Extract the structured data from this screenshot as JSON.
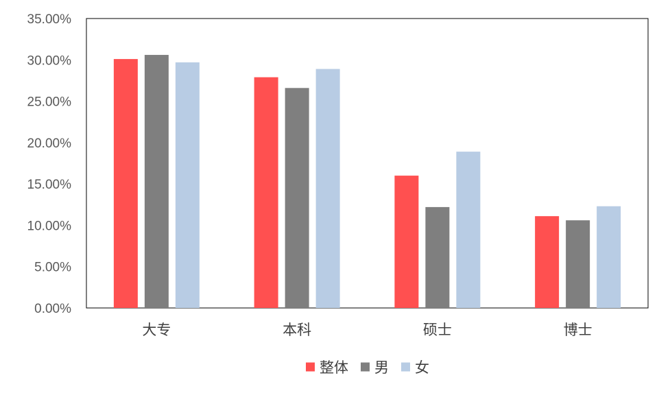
{
  "chart_data": {
    "type": "bar",
    "title": "",
    "xlabel": "",
    "ylabel": "",
    "categories": [
      "大专",
      "本科",
      "硕士",
      "博士"
    ],
    "series": [
      {
        "name": "整体",
        "color": "#FF5050",
        "values": [
          30.1,
          27.9,
          16.0,
          11.1
        ]
      },
      {
        "name": "男",
        "color": "#7F7F7F",
        "values": [
          30.6,
          26.6,
          12.2,
          10.6
        ]
      },
      {
        "name": "女",
        "color": "#B8CCE4",
        "values": [
          29.7,
          28.9,
          18.9,
          12.3
        ]
      }
    ],
    "ylim": [
      0,
      35
    ],
    "yticks": [
      0,
      5,
      10,
      15,
      20,
      25,
      30,
      35
    ],
    "ytick_labels": [
      "0.00%",
      "5.00%",
      "10.00%",
      "15.00%",
      "20.00%",
      "25.00%",
      "30.00%",
      "35.00%"
    ],
    "grid": false,
    "legend_position": "bottom"
  }
}
